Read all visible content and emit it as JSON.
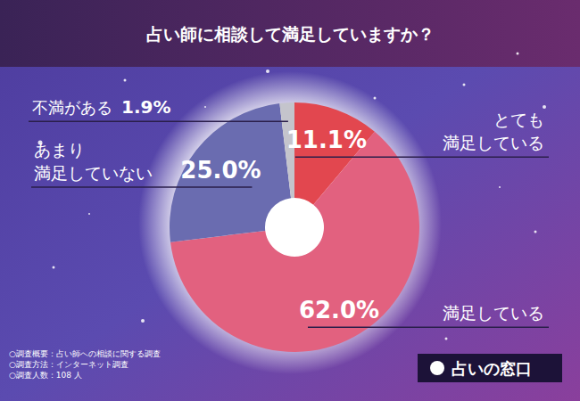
{
  "chart_data": {
    "type": "pie",
    "title": "占い師に相談して満足していますか？",
    "categories": [
      "とても\n満足している",
      "満足している",
      "あまり\n満足していない",
      "不満がある"
    ],
    "values": [
      11.1,
      62.0,
      25.0,
      1.9
    ],
    "value_labels": [
      "11.1%",
      "62.0%",
      "25.0%",
      "1.9%"
    ],
    "colors": [
      "#e2474f",
      "#e2617f",
      "#6a6cb0",
      "#c4c4cc"
    ],
    "data_labels": true
  },
  "notes": [
    "○調査概要：占い師への相談に関する調査",
    "○調査方法：インターネット調査",
    "○調査人数：108 人"
  ],
  "brand": "占いの窓口"
}
